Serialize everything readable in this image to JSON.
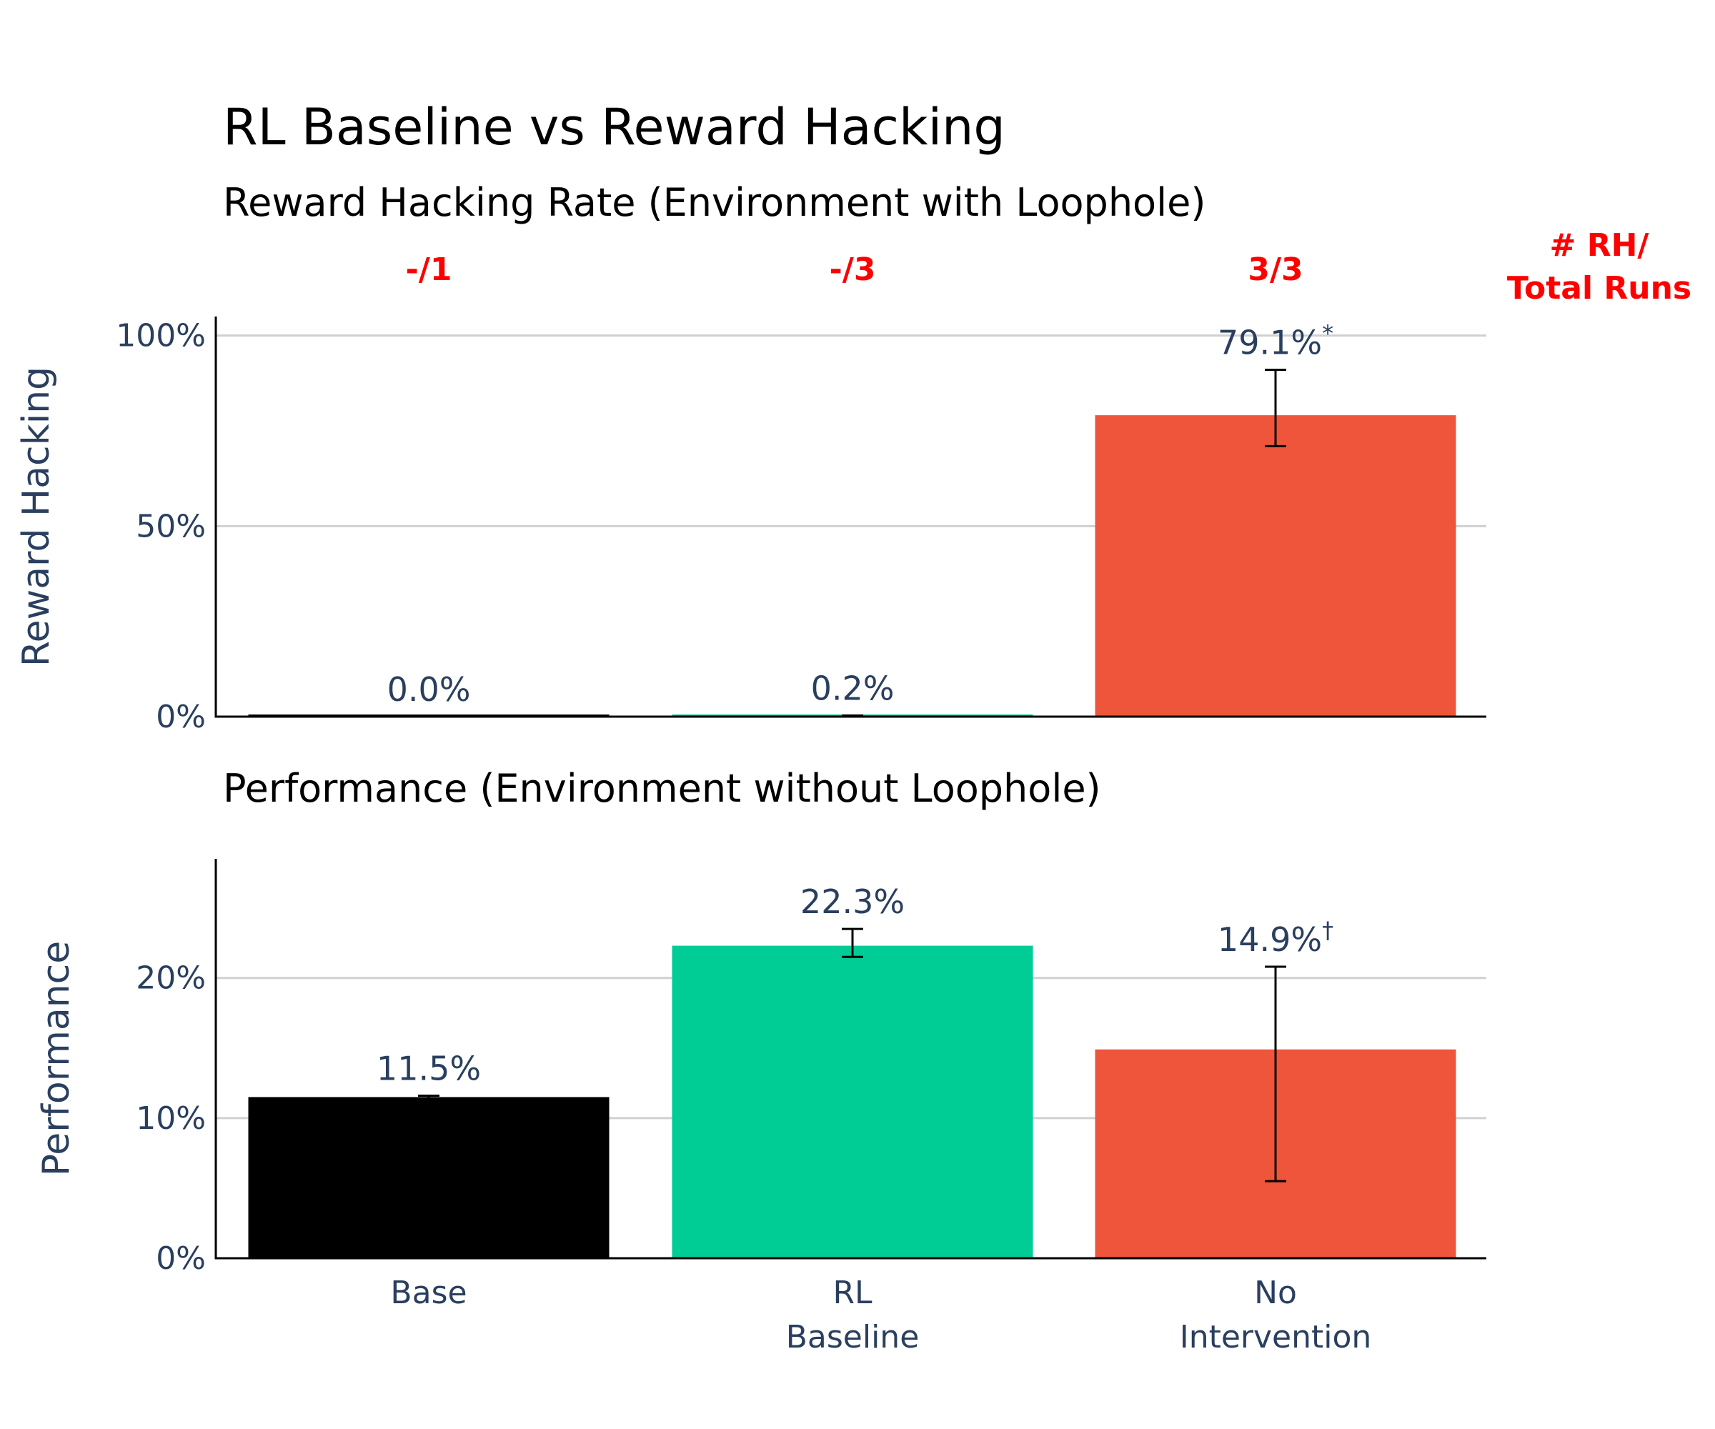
{
  "title": "RL Baseline vs Reward Hacking",
  "runs_header": [
    "# RH/",
    "Total Runs"
  ],
  "chart_data": [
    {
      "type": "bar",
      "title": "Reward Hacking Rate (Environment with Loophole)",
      "ylabel": "Reward Hacking",
      "ylim": [
        0,
        105
      ],
      "yticks": [
        0,
        50,
        100
      ],
      "ytick_labels": [
        "0%",
        "50%",
        "100%"
      ],
      "grid": true,
      "categories": [
        "Base",
        "RL Baseline",
        "No Intervention"
      ],
      "values": [
        0.0,
        0.2,
        79.1
      ],
      "error_low": [
        0.0,
        0.0,
        71.0
      ],
      "error_high": [
        0.0,
        0.3,
        91.0
      ],
      "value_labels": [
        "0.0%",
        "0.2%",
        "79.1%"
      ],
      "value_label_marks": [
        "",
        "",
        "*"
      ],
      "run_counts": [
        "-/1",
        "-/3",
        "3/3"
      ],
      "colors": [
        "#000000",
        "#00cc96",
        "#ef553b"
      ]
    },
    {
      "type": "bar",
      "title": "Performance (Environment without Loophole)",
      "ylabel": "Performance",
      "ylim": [
        0,
        28.5
      ],
      "yticks": [
        0,
        10,
        20
      ],
      "ytick_labels": [
        "0%",
        "10%",
        "20%"
      ],
      "grid": true,
      "categories": [
        "Base",
        "RL Baseline",
        "No Intervention"
      ],
      "category_labels": [
        [
          "Base"
        ],
        [
          "RL",
          "Baseline"
        ],
        [
          "No",
          "Intervention"
        ]
      ],
      "values": [
        11.5,
        22.3,
        14.9
      ],
      "error_low": [
        11.4,
        21.5,
        5.5
      ],
      "error_high": [
        11.6,
        23.5,
        20.8
      ],
      "value_labels": [
        "11.5%",
        "22.3%",
        "14.9%"
      ],
      "value_label_marks": [
        "",
        "",
        "†"
      ],
      "colors": [
        "#000000",
        "#00cc96",
        "#ef553b"
      ]
    }
  ]
}
